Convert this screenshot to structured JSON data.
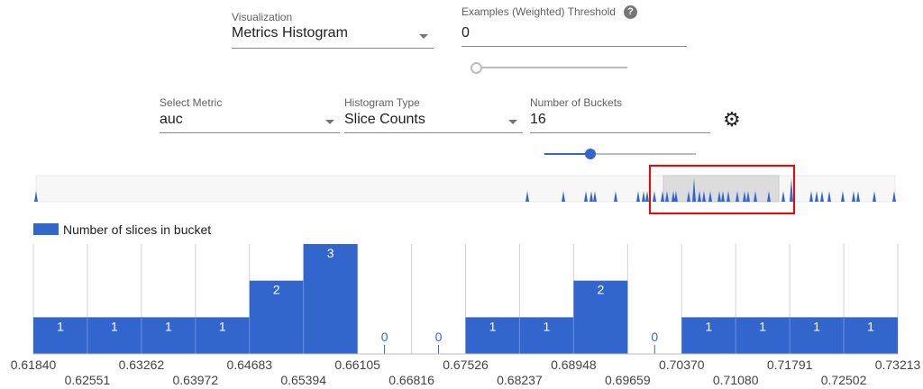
{
  "controls": {
    "visualization": {
      "label": "Visualization",
      "value": "Metrics Histogram"
    },
    "threshold": {
      "label": "Examples (Weighted) Threshold",
      "value": "0",
      "help_icon": "help-icon",
      "slider_fraction": 0
    },
    "select_metric": {
      "label": "Select Metric",
      "value": "auc"
    },
    "histogram_type": {
      "label": "Histogram Type",
      "value": "Slice Counts"
    },
    "num_buckets": {
      "label": "Number of Buckets",
      "value": "16",
      "settings_icon": "gear-icon",
      "slider_fraction": 0.3
    }
  },
  "colors": {
    "bar": "#3366cc",
    "highlight": "#ff0000"
  },
  "chart_data": {
    "type": "bar",
    "legend": "Number of slices in bucket",
    "legend_position": "top-left",
    "bucket_edges": [
      "0.61840",
      "0.62551",
      "0.63262",
      "0.63972",
      "0.64683",
      "0.65394",
      "0.66105",
      "0.66816",
      "0.67526",
      "0.68237",
      "0.68948",
      "0.69659",
      "0.70370",
      "0.71080",
      "0.71791",
      "0.72502",
      "0.73213"
    ],
    "values": [
      1,
      1,
      1,
      1,
      2,
      3,
      0,
      0,
      1,
      1,
      2,
      0,
      1,
      1,
      1,
      1
    ],
    "ylim": [
      0,
      3
    ],
    "grid": true
  }
}
